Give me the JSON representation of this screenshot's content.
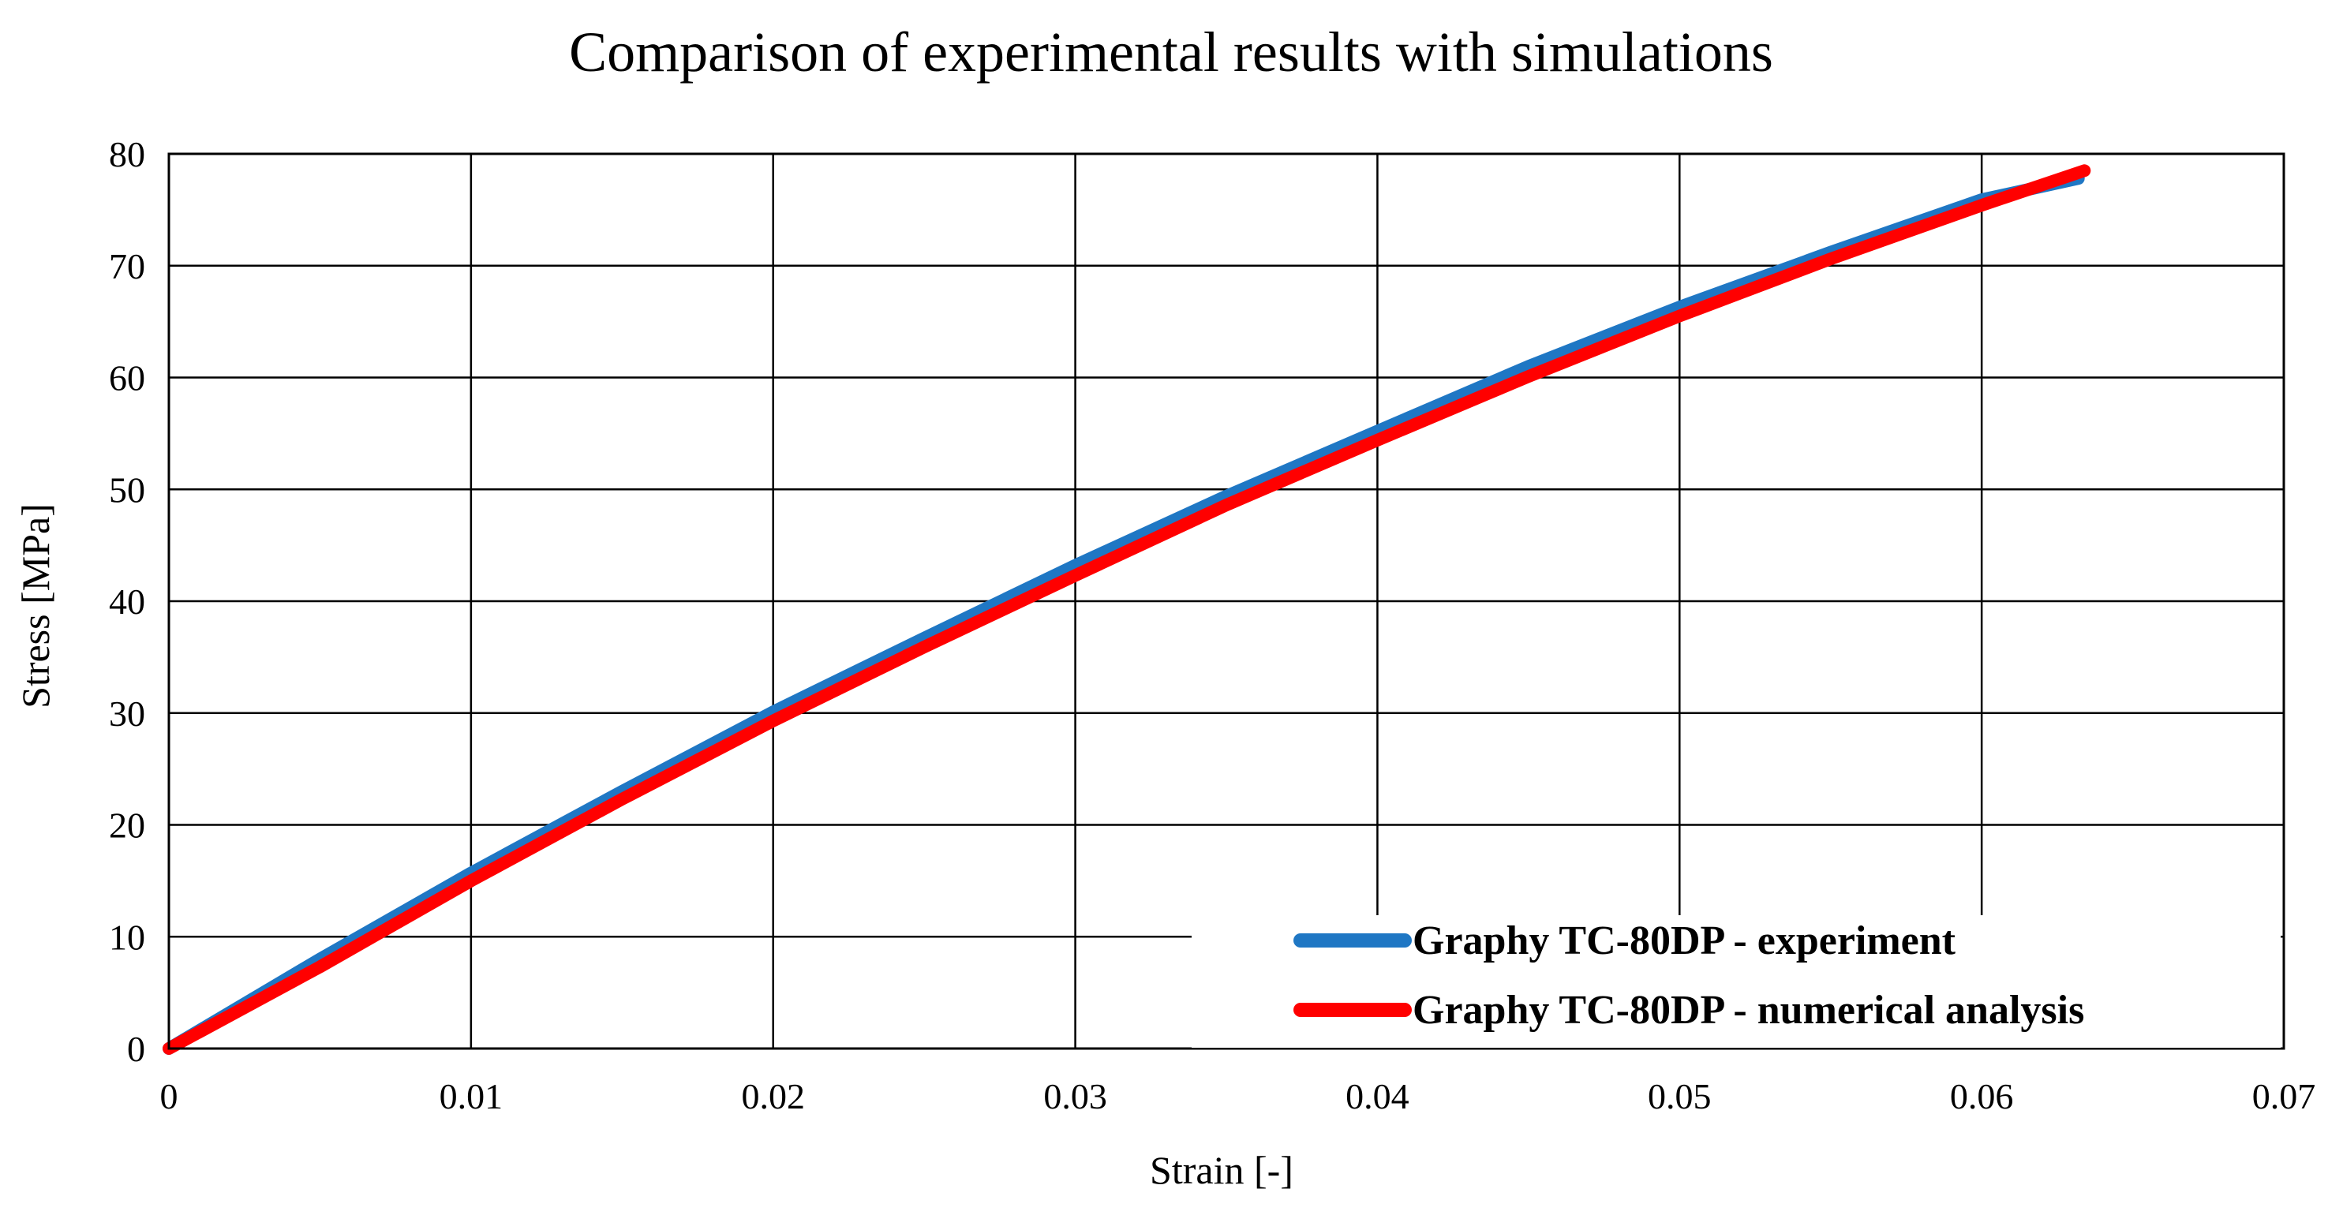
{
  "chart_data": {
    "type": "line",
    "title": "Comparison of experimental results with simulations",
    "xlabel": "Strain [-]",
    "ylabel": "Stress [MPa]",
    "xlim": [
      0,
      0.07
    ],
    "ylim": [
      0,
      80
    ],
    "x_ticks": [
      0,
      0.01,
      0.02,
      0.03,
      0.04,
      0.05,
      0.06,
      0.07
    ],
    "x_tick_labels": [
      "0",
      "0.01",
      "0.02",
      "0.03",
      "0.04",
      "0.05",
      "0.06",
      "0.07"
    ],
    "y_ticks": [
      0,
      10,
      20,
      30,
      40,
      50,
      60,
      70,
      80
    ],
    "y_tick_labels": [
      "0",
      "10",
      "20",
      "30",
      "40",
      "50",
      "60",
      "70",
      "80"
    ],
    "grid": true,
    "legend_position": "bottom-right",
    "series": [
      {
        "name": "Graphy TC-80DP - experiment",
        "color": "#1f77c4",
        "x": [
          0,
          0.005,
          0.01,
          0.015,
          0.02,
          0.025,
          0.03,
          0.035,
          0.04,
          0.045,
          0.05,
          0.055,
          0.06,
          0.0632
        ],
        "y": [
          0,
          8,
          15.7,
          23,
          30.1,
          36.7,
          43.2,
          49.4,
          55.2,
          61,
          66.3,
          71.2,
          75.9,
          77.8
        ]
      },
      {
        "name": "Graphy TC-80DP - numerical analysis",
        "color": "#ff0000",
        "x": [
          0,
          0.005,
          0.01,
          0.015,
          0.02,
          0.025,
          0.03,
          0.035,
          0.04,
          0.045,
          0.05,
          0.055,
          0.06,
          0.0634
        ],
        "y": [
          0,
          7.3,
          15,
          22.3,
          29.3,
          35.9,
          42.3,
          48.6,
          54.4,
          60.1,
          65.5,
          70.6,
          75.4,
          78.5
        ]
      }
    ]
  }
}
